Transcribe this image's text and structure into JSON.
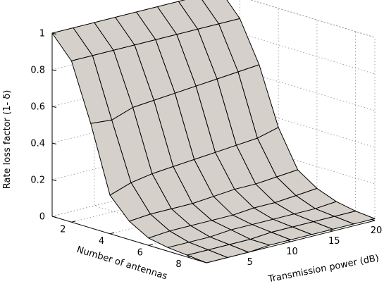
{
  "chart_data": {
    "type": "surface",
    "xlabel": "Transmission power (dB)",
    "ylabel": "Number of antennas",
    "zlabel": "Rate loss factor (1- δ)",
    "x": [
      0,
      2.5,
      5,
      7.5,
      10,
      12.5,
      15,
      17.5,
      20
    ],
    "y": [
      1,
      2,
      3,
      4,
      5,
      6,
      7,
      8,
      9
    ],
    "z": [
      [
        1.0,
        1.0,
        1.0,
        1.0,
        1.0,
        1.0,
        1.0,
        1.0,
        1.0
      ],
      [
        0.88,
        0.88,
        0.88,
        0.88,
        0.88,
        0.88,
        0.88,
        0.88,
        0.88
      ],
      [
        0.57,
        0.56,
        0.6,
        0.61,
        0.62,
        0.63,
        0.64,
        0.65,
        0.66
      ],
      [
        0.21,
        0.25,
        0.27,
        0.28,
        0.29,
        0.3,
        0.31,
        0.32,
        0.35
      ],
      [
        0.1,
        0.11,
        0.11,
        0.11,
        0.12,
        0.13,
        0.13,
        0.14,
        0.15
      ],
      [
        0.04,
        0.05,
        0.05,
        0.05,
        0.05,
        0.06,
        0.06,
        0.07,
        0.08
      ],
      [
        0.02,
        0.02,
        0.02,
        0.03,
        0.03,
        0.03,
        0.03,
        0.03,
        0.04
      ],
      [
        0.01,
        0.01,
        0.01,
        0.01,
        0.02,
        0.02,
        0.02,
        0.02,
        0.02
      ],
      [
        0.0,
        0.0,
        0.0,
        0.01,
        0.01,
        0.01,
        0.01,
        0.01,
        0.01
      ]
    ],
    "xlim": [
      0,
      20
    ],
    "ylim": [
      1,
      9
    ],
    "zlim": [
      0,
      1
    ],
    "xticks": [
      "5",
      "10",
      "15",
      "20"
    ],
    "yticks": [
      "2",
      "4",
      "6",
      "8"
    ],
    "zticks": [
      "0",
      "0.2",
      "0.4",
      "0.6",
      "0.8",
      "1"
    ],
    "grid": true,
    "surface_color": "#d5d1ca",
    "edge_color": "#000000"
  }
}
